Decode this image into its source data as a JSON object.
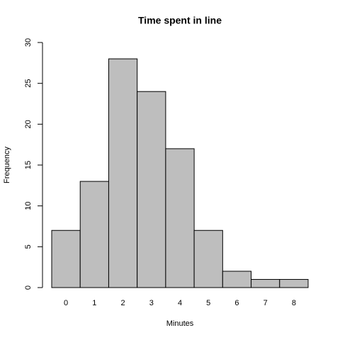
{
  "chart_data": {
    "type": "bar",
    "title": "Time spent in line",
    "x_label": "Minutes",
    "y_label": "Frequency",
    "categories": [
      "0",
      "1",
      "2",
      "3",
      "4",
      "5",
      "6",
      "7",
      "8"
    ],
    "values": [
      7,
      13,
      28,
      24,
      17,
      7,
      2,
      1,
      1
    ],
    "color": "#bebebe",
    "ylim": [
      0,
      30
    ],
    "yticks": [
      0,
      5,
      10,
      15,
      20,
      25,
      30
    ]
  }
}
